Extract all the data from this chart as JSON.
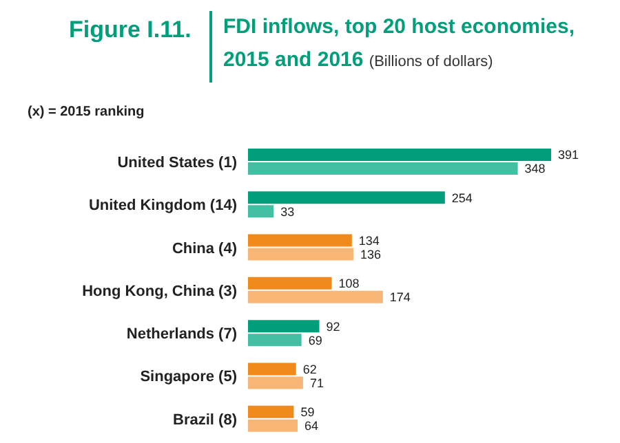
{
  "chart_data": {
    "type": "bar",
    "orientation": "horizontal",
    "title": "FDI inflows, top 20 host economies, 2015 and 2016",
    "subtitle": "(Billions of dollars)",
    "annotations": [
      "Figure I.11.",
      "(x) = 2015 ranking"
    ],
    "categories": [
      "United States (1)",
      "United Kingdom (14)",
      "China (4)",
      "Hong Kong, China (3)",
      "Netherlands (7)",
      "Singapore (5)",
      "Brazil (8)"
    ],
    "series": [
      {
        "values": [
          391,
          254,
          134,
          108,
          92,
          62,
          59
        ],
        "colors": [
          "#009e7b",
          "#009e7b",
          "#f08a1d",
          "#f08a1d",
          "#009e7b",
          "#f08a1d",
          "#f08a1d"
        ]
      },
      {
        "values": [
          348,
          33,
          136,
          174,
          69,
          71,
          64
        ],
        "colors": [
          "#44bfa3",
          "#44bfa3",
          "#f8b676",
          "#f8b676",
          "#44bfa3",
          "#f8b676",
          "#f8b676"
        ]
      }
    ],
    "data_labels": true,
    "grid": false,
    "legend": false
  }
}
